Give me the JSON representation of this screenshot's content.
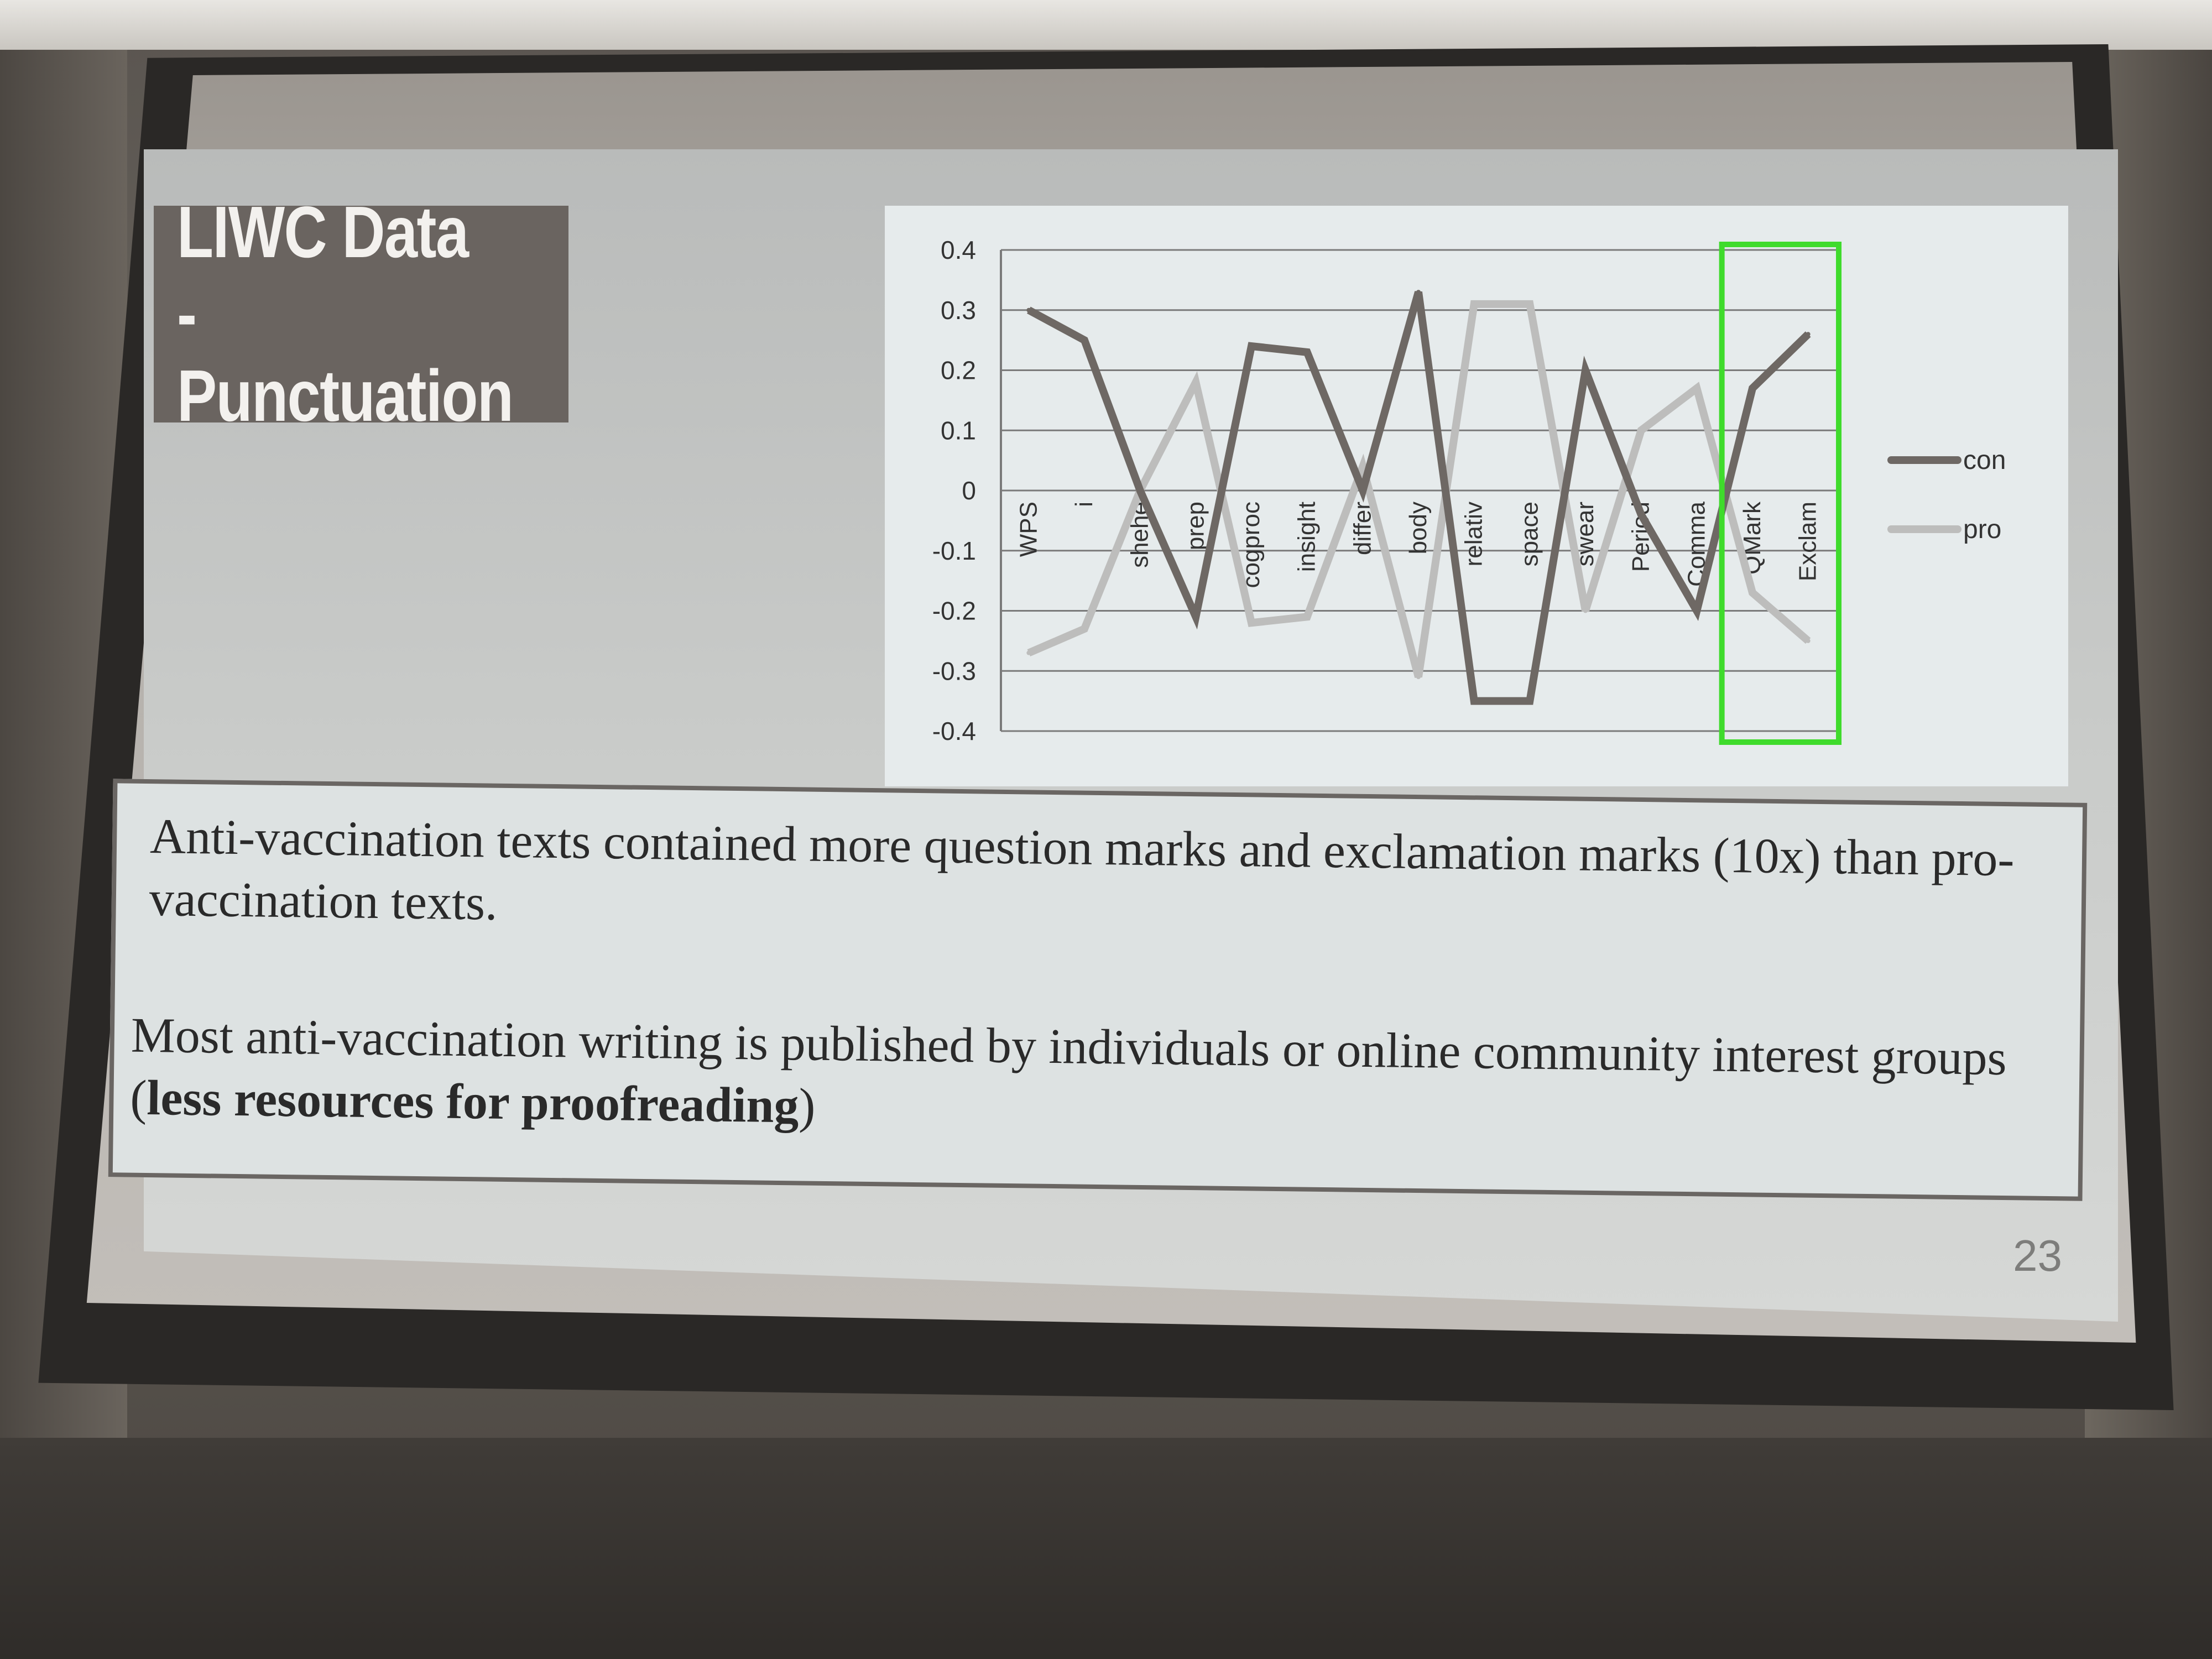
{
  "slide": {
    "title_line1": "LIWC Data -",
    "title_line2": "Punctuation",
    "paragraph1": "Anti-vaccination texts contained more question marks and exclamation marks (10x) than pro-vaccination texts.",
    "paragraph2_prefix": "Most anti-vaccination writing is published by individuals or online community interest groups (",
    "paragraph2_bold": "less resources for proofreading",
    "paragraph2_suffix": ")",
    "page_number": "23"
  },
  "colors": {
    "con": "#6e6864",
    "pro": "#bdbdbc",
    "highlight": "#3fdb2c",
    "title_bg": "#6a6460"
  },
  "chart_data": {
    "type": "line",
    "categories": [
      "WPS",
      "i",
      "shehe",
      "prep",
      "cogproc",
      "insight",
      "differ",
      "body",
      "relativ",
      "space",
      "swear",
      "Period",
      "Comma",
      "QMark",
      "Exclam"
    ],
    "series": [
      {
        "name": "con",
        "values": [
          0.3,
          0.25,
          0.0,
          -0.21,
          0.24,
          0.23,
          0.0,
          0.33,
          -0.35,
          -0.35,
          0.2,
          -0.04,
          -0.2,
          0.17,
          0.26
        ]
      },
      {
        "name": "pro",
        "values": [
          -0.27,
          -0.23,
          0.0,
          0.18,
          -0.22,
          -0.21,
          0.04,
          -0.31,
          0.31,
          0.31,
          -0.2,
          0.1,
          0.17,
          -0.17,
          -0.25
        ]
      }
    ],
    "y_ticks": [
      "0.4",
      "0.3",
      "0.2",
      "0.1",
      "0",
      "-0.1",
      "-0.2",
      "-0.3",
      "-0.4"
    ],
    "ylim": [
      -0.4,
      0.4
    ],
    "grid": true,
    "legend_position": "right",
    "highlighted_categories": [
      "QMark",
      "Exclam"
    ]
  }
}
